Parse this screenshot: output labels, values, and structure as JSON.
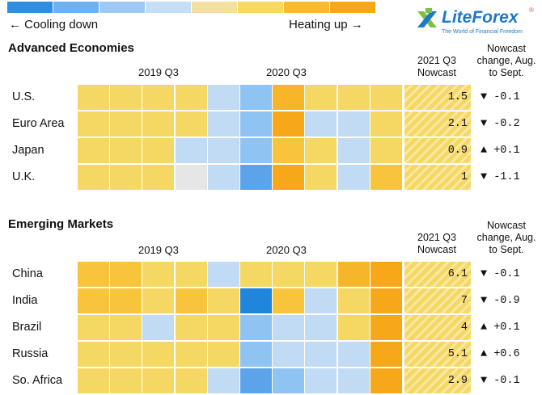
{
  "legend": {
    "colors": [
      "#2f8ee0",
      "#6fb1ef",
      "#9ccaf5",
      "#c5ddf5",
      "#f3e0a0",
      "#f6d95e",
      "#f7bb30",
      "#f7a81a"
    ],
    "cooling": "← Cooling down",
    "heating": "Heating up →"
  },
  "logo": {
    "brand": "LiteForex",
    "registered": "®",
    "tagline": "The World of Financial Freedom",
    "icon": "liteforex-x-icon"
  },
  "chart_data": [
    {
      "type": "heatmap",
      "title": "Advanced Economies",
      "period_labels": [
        "2019 Q3",
        "2020 Q3"
      ],
      "nowcast_header": [
        "2021 Q3",
        "Nowcast"
      ],
      "change_header": [
        "Nowcast",
        "change, Aug.",
        "to Sept."
      ],
      "rows": [
        {
          "country": "U.S.",
          "cells": [
            5,
            5,
            5,
            5,
            3,
            2,
            7,
            5,
            5,
            5
          ],
          "nowcast": "1.5",
          "change": "▼ -0.1"
        },
        {
          "country": "Euro Area",
          "cells": [
            5,
            5,
            5,
            5,
            3,
            2,
            8,
            3,
            3,
            5
          ],
          "nowcast": "2.1",
          "change": "▼ -0.2"
        },
        {
          "country": "Japan",
          "cells": [
            5,
            5,
            5,
            3,
            3,
            2,
            6,
            5,
            3,
            5
          ],
          "nowcast": "0.9",
          "change": "▲ +0.1"
        },
        {
          "country": "U.K.",
          "cells": [
            5,
            5,
            5,
            0,
            3,
            1,
            8,
            5,
            3,
            6
          ],
          "nowcast": "1",
          "change": "▼ -1.1"
        }
      ]
    },
    {
      "type": "heatmap",
      "title": "Emerging Markets",
      "period_labels": [
        "2019 Q3",
        "2020 Q3"
      ],
      "nowcast_header": [
        "2021 Q3",
        "Nowcast"
      ],
      "change_header": [
        "Nowcast",
        "change, Aug.",
        "to Sept."
      ],
      "rows": [
        {
          "country": "China",
          "cells": [
            6,
            6,
            5,
            5,
            3,
            5,
            5,
            5,
            7,
            8
          ],
          "nowcast": "6.1",
          "change": "▼ -0.1"
        },
        {
          "country": "India",
          "cells": [
            6,
            6,
            5,
            6,
            5,
            1,
            6,
            3,
            5,
            8
          ],
          "nowcast": "7",
          "change": "▼ -0.9"
        },
        {
          "country": "Brazil",
          "cells": [
            5,
            5,
            3,
            5,
            5,
            2,
            3,
            3,
            5,
            8
          ],
          "nowcast": "4",
          "change": "▲ +0.1"
        },
        {
          "country": "Russia",
          "cells": [
            5,
            5,
            5,
            5,
            5,
            2,
            3,
            3,
            3,
            8
          ],
          "nowcast": "5.1",
          "change": "▲ +0.6"
        },
        {
          "country": "So. Africa",
          "cells": [
            5,
            5,
            5,
            5,
            3,
            1,
            2,
            3,
            3,
            8
          ],
          "nowcast": "2.9",
          "change": "▼ -0.1"
        }
      ]
    }
  ]
}
